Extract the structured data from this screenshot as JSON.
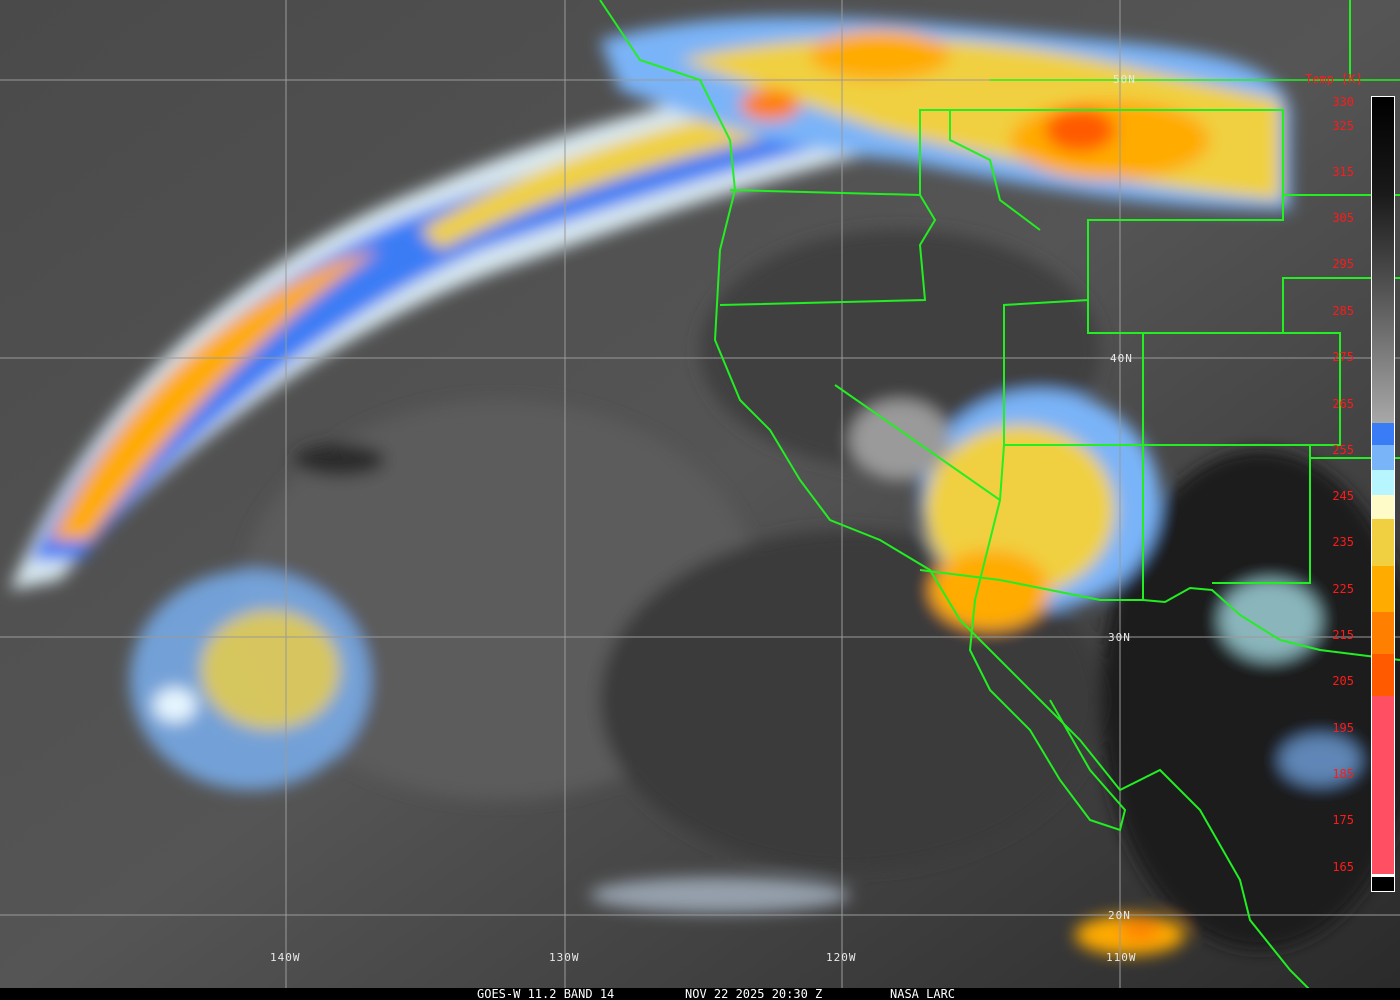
{
  "caption": {
    "product": "GOES-W 11.2 BAND 14",
    "datetime": "NOV 22 2025 20:30 Z",
    "source": "NASA LARC"
  },
  "colorbar": {
    "title": "Temp [K]",
    "labels": [
      "330",
      "325",
      "315",
      "305",
      "295",
      "285",
      "275",
      "265",
      "255",
      "245",
      "235",
      "225",
      "215",
      "205",
      "195",
      "185",
      "175",
      "165"
    ],
    "colors": {
      "blue": "#3a7cf5",
      "light_blue": "#7ab4f8",
      "cyan": "#b8f6ff",
      "pale_yellow": "#fffbc8",
      "yellow": "#f0d040",
      "orange": "#ffab00",
      "dark_orange": "#ff7f00",
      "red_orange": "#ff5a00",
      "pink": "#ff4f63"
    }
  },
  "grid": {
    "lat_labels": [
      "50N",
      "40N",
      "30N",
      "20N"
    ],
    "lon_labels": [
      "140W",
      "130W",
      "120W",
      "110W"
    ]
  },
  "boundary_color": "#22ee22"
}
